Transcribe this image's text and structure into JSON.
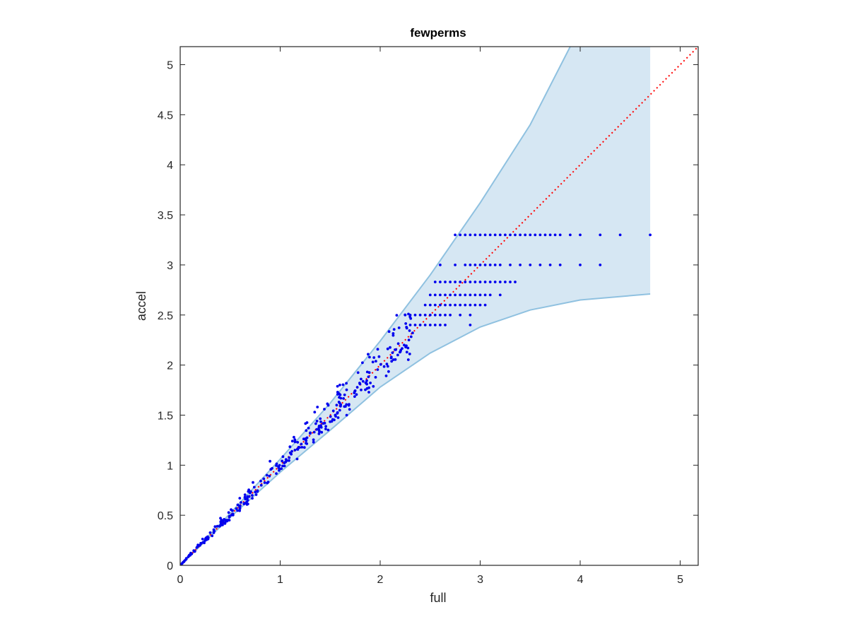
{
  "chart_data": {
    "type": "scatter",
    "title": "fewperms",
    "xlabel": "full",
    "ylabel": "accel",
    "xlim": [
      0,
      5.18
    ],
    "ylim": [
      0,
      5.18
    ],
    "xticks": [
      0,
      1,
      2,
      3,
      4,
      5
    ],
    "yticks": [
      0,
      0.5,
      1,
      1.5,
      2,
      2.5,
      3,
      3.5,
      4,
      4.5,
      5
    ],
    "xtick_labels": [
      "0",
      "1",
      "2",
      "3",
      "4",
      "5"
    ],
    "ytick_labels": [
      "0",
      "0.5",
      "1",
      "1.5",
      "2",
      "2.5",
      "3",
      "3.5",
      "4",
      "4.5",
      "5"
    ],
    "grid": false,
    "box": true,
    "colors": {
      "points": "#0000ee",
      "identity_line": "#ff0000",
      "band_fill": "#d6e7f3",
      "band_edge": "#8fc1e0"
    },
    "band": {
      "x_right_edge": 4.7,
      "upper": [
        [
          0,
          0
        ],
        [
          0.5,
          0.52
        ],
        [
          1,
          1.06
        ],
        [
          1.5,
          1.62
        ],
        [
          2,
          2.24
        ],
        [
          2.5,
          2.9
        ],
        [
          3,
          3.62
        ],
        [
          3.5,
          4.4
        ],
        [
          3.9,
          5.18
        ]
      ],
      "lower": [
        [
          0,
          0
        ],
        [
          0.5,
          0.48
        ],
        [
          1,
          0.93
        ],
        [
          1.5,
          1.35
        ],
        [
          2,
          1.78
        ],
        [
          2.5,
          2.12
        ],
        [
          3,
          2.38
        ],
        [
          3.5,
          2.55
        ],
        [
          4,
          2.65
        ],
        [
          4.7,
          2.71
        ]
      ]
    },
    "identity_line": {
      "from": [
        0,
        0
      ],
      "to": [
        5.18,
        5.18
      ],
      "style": "dotted"
    },
    "scatter_rows": [
      {
        "y": 3.3,
        "x": [
          2.75,
          2.8,
          2.85,
          2.9,
          2.95,
          3.0,
          3.05,
          3.1,
          3.15,
          3.2,
          3.25,
          3.3,
          3.35,
          3.4,
          3.45,
          3.5,
          3.55,
          3.6,
          3.65,
          3.7,
          3.75,
          3.8,
          3.9,
          4.0,
          4.2,
          4.4,
          4.7
        ]
      },
      {
        "y": 3.0,
        "x": [
          2.6,
          2.75,
          2.85,
          2.9,
          2.95,
          3.0,
          3.05,
          3.1,
          3.15,
          3.2,
          3.3,
          3.4,
          3.5,
          3.6,
          3.7,
          3.8,
          4.0,
          4.2
        ]
      },
      {
        "y": 2.83,
        "x": [
          2.55,
          2.6,
          2.65,
          2.7,
          2.75,
          2.8,
          2.85,
          2.9,
          2.95,
          3.0,
          3.05,
          3.1,
          3.15,
          3.2,
          3.25,
          3.3,
          3.35
        ]
      },
      {
        "y": 2.7,
        "x": [
          2.5,
          2.55,
          2.6,
          2.65,
          2.7,
          2.75,
          2.8,
          2.85,
          2.9,
          2.95,
          3.0,
          3.05,
          3.1,
          3.2
        ]
      },
      {
        "y": 2.6,
        "x": [
          2.45,
          2.5,
          2.55,
          2.6,
          2.65,
          2.7,
          2.75,
          2.8,
          2.85,
          2.9,
          2.95,
          3.0,
          3.05
        ]
      },
      {
        "y": 2.5,
        "x": [
          2.25,
          2.3,
          2.35,
          2.4,
          2.45,
          2.5,
          2.55,
          2.6,
          2.65,
          2.7,
          2.8,
          2.9
        ]
      },
      {
        "y": 2.4,
        "x": [
          2.3,
          2.35,
          2.4,
          2.45,
          2.5,
          2.55,
          2.6,
          2.65,
          2.9
        ]
      }
    ],
    "scatter_trend": {
      "x_range": [
        0,
        2.35
      ],
      "count": 320,
      "spread": 0.045
    }
  }
}
